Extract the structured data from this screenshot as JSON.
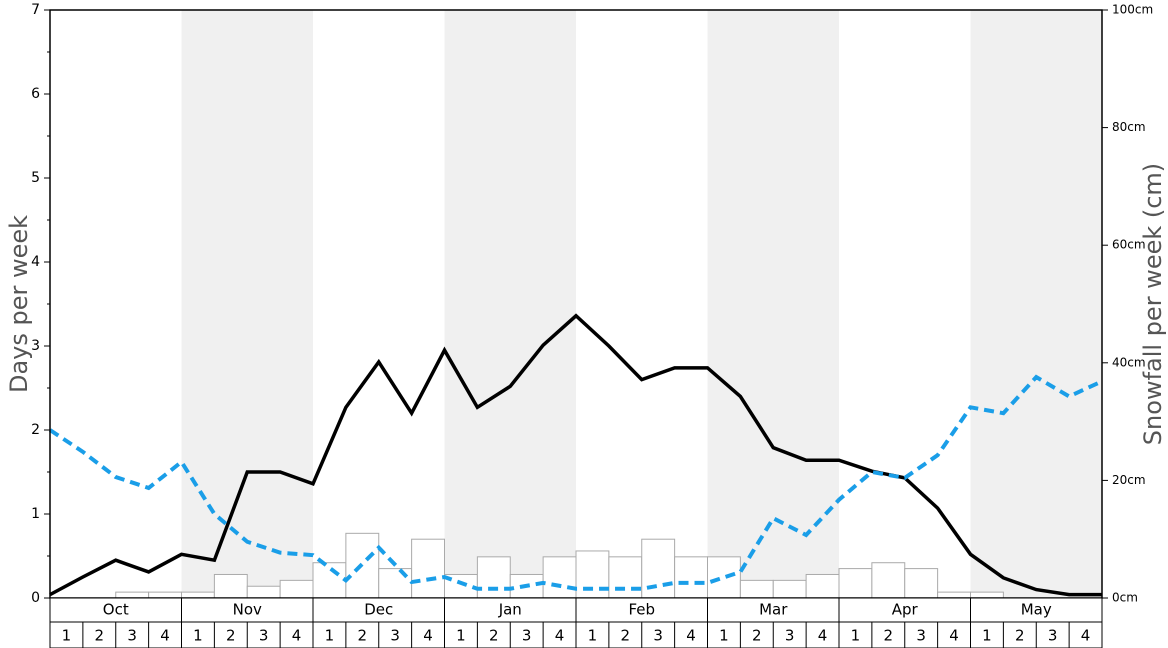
{
  "chart_data": {
    "type": "combo",
    "y_label": "Days per week",
    "y2_label": "Snowfall per week (cm)",
    "months": [
      "Oct",
      "Nov",
      "Dec",
      "Jan",
      "Feb",
      "Mar",
      "Apr",
      "May"
    ],
    "week_labels": [
      "1",
      "2",
      "3",
      "4"
    ],
    "shaded_months": [
      false,
      true,
      false,
      true,
      false,
      true,
      false,
      true
    ],
    "ylim": [
      0,
      7
    ],
    "yticks": [
      0,
      1,
      2,
      3,
      4,
      5,
      6,
      7
    ],
    "yminorticks": [
      0.5,
      1.5,
      2.5,
      3.5,
      4.5,
      5.5,
      6.5
    ],
    "y2lim": [
      0,
      100
    ],
    "y2ticks": [
      {
        "value": 0,
        "label": "0cm"
      },
      {
        "value": 20,
        "label": "20cm"
      },
      {
        "value": 40,
        "label": "40cm"
      },
      {
        "value": 60,
        "label": "60cm"
      },
      {
        "value": 80,
        "label": "80cm"
      },
      {
        "value": 100,
        "label": "100cm"
      }
    ],
    "series": [
      {
        "type": "bar",
        "axis": "y2",
        "color": "#ffffff",
        "stroke": "#aaaaaa",
        "values": [
          0,
          0,
          1,
          1,
          1,
          4,
          2,
          3,
          6,
          11,
          5,
          10,
          4,
          7,
          4,
          7,
          8,
          7,
          10,
          7,
          7,
          3,
          3,
          4,
          5,
          6,
          5,
          1,
          1,
          0,
          0,
          0
        ]
      },
      {
        "type": "line",
        "axis": "y",
        "color": "#000000",
        "dashed": false,
        "values": [
          0.04,
          0.25,
          0.45,
          0.31,
          0.52,
          0.45,
          1.5,
          1.5,
          1.36,
          2.27,
          2.81,
          2.2,
          2.95,
          2.27,
          2.52,
          3.01,
          3.36,
          3.0,
          2.6,
          2.74,
          2.74,
          2.4,
          1.79,
          1.64,
          1.64,
          1.51,
          1.43,
          1.07,
          0.52,
          0.24,
          0.1,
          0.04,
          0.04
        ]
      },
      {
        "type": "line",
        "axis": "y",
        "color": "#1a9ee8",
        "dashed": true,
        "values": [
          2.0,
          1.74,
          1.44,
          1.31,
          1.62,
          1.0,
          0.67,
          0.54,
          0.51,
          0.21,
          0.6,
          0.19,
          0.25,
          0.11,
          0.11,
          0.18,
          0.11,
          0.11,
          0.11,
          0.18,
          0.18,
          0.31,
          0.95,
          0.75,
          1.17,
          1.5,
          1.43,
          1.7,
          2.27,
          2.2,
          2.63,
          2.4,
          2.58
        ]
      }
    ]
  }
}
